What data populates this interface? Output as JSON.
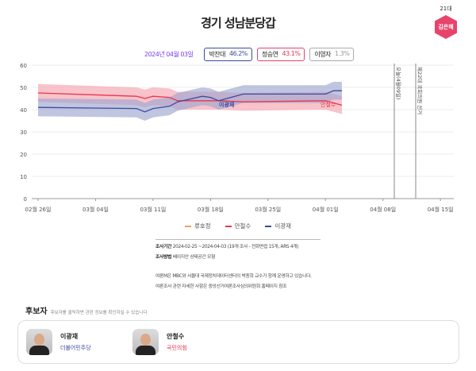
{
  "title": "경기 성남분당갑",
  "badge": {
    "era": "21대",
    "name": "김은혜",
    "color": "#e8436b"
  },
  "result": {
    "date": "2024년 04월 03일",
    "pills": [
      {
        "name": "박찬대",
        "pct": "46.2%",
        "color": "#3b4a9e"
      },
      {
        "name": "정승연",
        "pct": "43.1%",
        "color": "#e8364e"
      },
      {
        "name": "이영자",
        "pct": "1.3%",
        "color": "#999999"
      }
    ]
  },
  "chart_data": {
    "type": "line",
    "ylim": [
      0,
      60
    ],
    "yticks": [
      "0",
      "10",
      "20",
      "30",
      "40",
      "50",
      "60"
    ],
    "xticks": [
      "02월 26일",
      "03월 04일",
      "03월 11일",
      "03월 18일",
      "03월 25일",
      "04월 01일",
      "04월 08일",
      "04월 15일"
    ],
    "grid": true,
    "legend_position": "bottom",
    "series": [
      {
        "name": "류호정",
        "color": "#f5a05a",
        "x": [],
        "values": []
      },
      {
        "name": "안철수",
        "color": "#e8364e",
        "band": "#f4a3ad",
        "x": [
          "2024-02-26",
          "2024-03-09",
          "2024-03-10",
          "2024-03-11",
          "2024-03-13",
          "2024-03-14",
          "2024-03-19",
          "2024-03-22",
          "2024-04-01",
          "2024-04-02",
          "2024-04-03"
        ],
        "values": [
          47.5,
          46,
          45,
          46,
          45.5,
          44,
          44,
          43.5,
          44,
          43,
          42
        ]
      },
      {
        "name": "이광재",
        "color": "#3b4a9e",
        "band": "#9ea6cf",
        "x": [
          "2024-02-26",
          "2024-03-09",
          "2024-03-10",
          "2024-03-11",
          "2024-03-13",
          "2024-03-14",
          "2024-03-17",
          "2024-03-18",
          "2024-03-19",
          "2024-03-22",
          "2024-04-01",
          "2024-04-02",
          "2024-04-03"
        ],
        "values": [
          41,
          40.5,
          39,
          40.5,
          41.5,
          43.5,
          46,
          45.5,
          44,
          47,
          47,
          48.5,
          48.5
        ]
      }
    ],
    "annotations": [
      {
        "date": "2024-04-09",
        "label": "오늘(4월09일)"
      },
      {
        "date": "2024-04-10",
        "label": "제22대 국회의원 선거"
      }
    ]
  },
  "legend": [
    "류호정",
    "안철수",
    "이광재"
  ],
  "info": {
    "period_label": "조사기간",
    "period": "2024-02-25 ~2024-04-03 (19개 조사 - 전화면접 15개, ARS 4개)",
    "method_label": "조사방법",
    "method": "베이지안 상태공간 모형",
    "note1": "여론M은 MBC와 서울대 국제정치데이터센터의 박종희 교수가 함께 운영하고 있습니다.",
    "note2": "여론조사 관련 자세한 사항은 중앙선거여론조사심의위원회 홈페이지 참조"
  },
  "candidates": {
    "title": "후보자",
    "hint": "후보자를 클릭하면 관련 정보를 확인하실 수 있습니다",
    "items": [
      {
        "name": "이광재",
        "party": "더불어민주당",
        "party_color": "#3b4a9e"
      },
      {
        "name": "안철수",
        "party": "국민의힘",
        "party_color": "#e8364e"
      }
    ]
  }
}
